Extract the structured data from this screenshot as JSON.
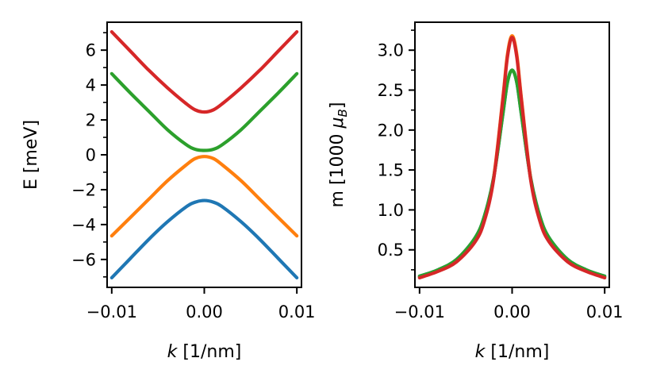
{
  "chart_data": [
    {
      "type": "line",
      "xlabel_italic": "k",
      "xlabel_rest": " [1/nm]",
      "ylabel": "E [meV]",
      "xlim": [
        -0.0105,
        0.0105
      ],
      "ylim": [
        -7.6,
        7.6
      ],
      "xticks": [
        -0.01,
        0.0,
        0.01
      ],
      "xtick_labels": [
        "−0.01",
        "0.00",
        "0.01"
      ],
      "yticks": [
        -6,
        -4,
        -2,
        0,
        2,
        4,
        6
      ],
      "ytick_labels": [
        "−6",
        "−4",
        "−2",
        "0",
        "2",
        "4",
        "6"
      ],
      "yminor": [
        -7,
        -5,
        -3,
        -1,
        1,
        3,
        5,
        7
      ],
      "grid": false,
      "series": [
        {
          "color": "#1f77b4",
          "x": [
            -0.01,
            -0.008,
            -0.006,
            -0.004,
            -0.002,
            -0.001,
            0.0,
            0.001,
            0.002,
            0.004,
            0.006,
            0.008,
            0.01
          ],
          "y": [
            -7.05,
            -5.95,
            -4.85,
            -3.85,
            -3.0,
            -2.72,
            -2.62,
            -2.72,
            -3.0,
            -3.85,
            -4.85,
            -5.95,
            -7.05
          ]
        },
        {
          "color": "#ff7f0e",
          "x": [
            -0.01,
            -0.008,
            -0.006,
            -0.004,
            -0.002,
            -0.001,
            0.0,
            0.001,
            0.002,
            0.004,
            0.006,
            0.008,
            0.01
          ],
          "y": [
            -4.65,
            -3.6,
            -2.55,
            -1.5,
            -0.6,
            -0.22,
            -0.1,
            -0.22,
            -0.6,
            -1.5,
            -2.55,
            -3.6,
            -4.65
          ]
        },
        {
          "color": "#2ca02c",
          "x": [
            -0.01,
            -0.008,
            -0.006,
            -0.004,
            -0.002,
            -0.001,
            0.0,
            0.001,
            0.002,
            0.004,
            0.006,
            0.008,
            0.01
          ],
          "y": [
            4.65,
            3.55,
            2.5,
            1.45,
            0.6,
            0.32,
            0.25,
            0.32,
            0.6,
            1.45,
            2.5,
            3.55,
            4.65
          ]
        },
        {
          "color": "#d62728",
          "x": [
            -0.01,
            -0.008,
            -0.006,
            -0.004,
            -0.002,
            -0.001,
            0.0,
            0.001,
            0.002,
            0.004,
            0.006,
            0.008,
            0.01
          ],
          "y": [
            7.05,
            5.95,
            4.85,
            3.85,
            2.95,
            2.58,
            2.45,
            2.58,
            2.95,
            3.85,
            4.85,
            5.95,
            7.05
          ]
        }
      ]
    },
    {
      "type": "line",
      "xlabel_italic": "k",
      "xlabel_rest": " [1/nm]",
      "ylabel_main": "m [1000 ",
      "ylabel_symbol": "μ",
      "ylabel_subscript": "B",
      "ylabel_close": "]",
      "xlim": [
        -0.0105,
        0.0105
      ],
      "ylim": [
        0.03,
        3.35
      ],
      "xticks": [
        -0.01,
        0.0,
        0.01
      ],
      "xtick_labels": [
        "−0.01",
        "0.00",
        "0.01"
      ],
      "yticks": [
        0.5,
        1.0,
        1.5,
        2.0,
        2.5,
        3.0
      ],
      "ytick_labels": [
        "0.5",
        "1.0",
        "1.5",
        "2.0",
        "2.5",
        "3.0"
      ],
      "yminor": [
        0.25,
        0.75,
        1.25,
        1.75,
        2.25,
        2.75,
        3.25
      ],
      "grid": false,
      "series": [
        {
          "color": "#1f77b4",
          "x": [
            -0.01,
            -0.008,
            -0.006,
            -0.004,
            -0.003,
            -0.002,
            -0.001,
            -0.0005,
            0.0,
            0.0005,
            0.001,
            0.002,
            0.003,
            0.004,
            0.006,
            0.008,
            0.01
          ],
          "y": [
            0.17,
            0.25,
            0.38,
            0.65,
            0.92,
            1.4,
            2.2,
            2.6,
            2.75,
            2.6,
            2.2,
            1.4,
            0.92,
            0.65,
            0.38,
            0.25,
            0.17
          ]
        },
        {
          "color": "#ff7f0e",
          "x": [
            -0.01,
            -0.008,
            -0.006,
            -0.004,
            -0.003,
            -0.002,
            -0.001,
            -0.0005,
            0.0,
            0.0005,
            0.001,
            0.002,
            0.003,
            0.004,
            0.006,
            0.008,
            0.01
          ],
          "y": [
            0.16,
            0.24,
            0.36,
            0.62,
            0.88,
            1.4,
            2.4,
            2.95,
            3.18,
            2.95,
            2.4,
            1.4,
            0.88,
            0.62,
            0.36,
            0.24,
            0.16
          ]
        },
        {
          "color": "#2ca02c",
          "x": [
            -0.01,
            -0.008,
            -0.006,
            -0.004,
            -0.003,
            -0.002,
            -0.001,
            -0.0005,
            0.0,
            0.0005,
            0.001,
            0.002,
            0.003,
            0.004,
            0.006,
            0.008,
            0.01
          ],
          "y": [
            0.17,
            0.25,
            0.38,
            0.65,
            0.92,
            1.4,
            2.2,
            2.6,
            2.75,
            2.6,
            2.2,
            1.4,
            0.92,
            0.65,
            0.38,
            0.25,
            0.17
          ]
        },
        {
          "color": "#d62728",
          "x": [
            -0.01,
            -0.008,
            -0.006,
            -0.004,
            -0.003,
            -0.002,
            -0.001,
            -0.0005,
            0.0,
            0.0005,
            0.001,
            0.002,
            0.003,
            0.004,
            0.006,
            0.008,
            0.01
          ],
          "y": [
            0.15,
            0.23,
            0.35,
            0.6,
            0.86,
            1.38,
            2.38,
            2.92,
            3.16,
            2.92,
            2.38,
            1.38,
            0.86,
            0.6,
            0.35,
            0.23,
            0.15
          ]
        }
      ]
    }
  ]
}
